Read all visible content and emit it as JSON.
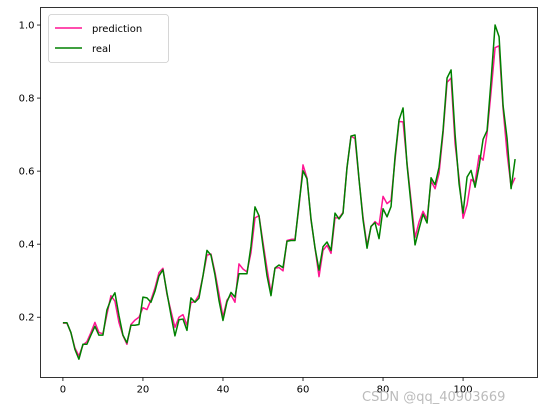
{
  "chart_data": {
    "type": "line",
    "title": "",
    "xlabel": "",
    "ylabel": "",
    "xlim": [
      -5.6,
      118.6
    ],
    "ylim": [
      0.035,
      1.048
    ],
    "xticks": [
      0,
      20,
      40,
      60,
      80,
      100
    ],
    "yticks": [
      0.2,
      0.4,
      0.6,
      0.8,
      1.0
    ],
    "xtick_labels": [
      "0",
      "20",
      "40",
      "60",
      "80",
      "100"
    ],
    "ytick_labels": [
      "0.2",
      "0.4",
      "0.6",
      "0.8",
      "1.0"
    ],
    "legend": {
      "position": "upper left"
    },
    "grid": false,
    "series": [
      {
        "name": "prediction",
        "color": "#ff1493",
        "values": [
          0.184,
          0.184,
          0.158,
          0.116,
          0.094,
          0.124,
          0.133,
          0.158,
          0.186,
          0.158,
          0.155,
          0.208,
          0.259,
          0.244,
          0.186,
          0.15,
          0.126,
          0.18,
          0.192,
          0.2,
          0.226,
          0.221,
          0.247,
          0.28,
          0.322,
          0.334,
          0.263,
          0.217,
          0.172,
          0.2,
          0.207,
          0.178,
          0.24,
          0.243,
          0.261,
          0.313,
          0.37,
          0.373,
          0.323,
          0.264,
          0.201,
          0.247,
          0.261,
          0.241,
          0.346,
          0.332,
          0.324,
          0.377,
          0.472,
          0.478,
          0.405,
          0.333,
          0.267,
          0.334,
          0.336,
          0.327,
          0.41,
          0.413,
          0.414,
          0.503,
          0.617,
          0.581,
          0.466,
          0.39,
          0.311,
          0.383,
          0.397,
          0.375,
          0.472,
          0.472,
          0.487,
          0.61,
          0.696,
          0.689,
          0.577,
          0.473,
          0.396,
          0.448,
          0.462,
          0.452,
          0.531,
          0.511,
          0.52,
          0.631,
          0.736,
          0.735,
          0.621,
          0.52,
          0.418,
          0.461,
          0.49,
          0.468,
          0.573,
          0.552,
          0.594,
          0.704,
          0.843,
          0.855,
          0.675,
          0.58,
          0.471,
          0.508,
          0.577,
          0.569,
          0.643,
          0.63,
          0.704,
          0.818,
          0.938,
          0.943,
          0.77,
          0.648,
          0.558,
          0.582
        ]
      },
      {
        "name": "real",
        "color": "#008000",
        "values": [
          0.185,
          0.185,
          0.158,
          0.112,
          0.085,
          0.126,
          0.126,
          0.151,
          0.175,
          0.151,
          0.151,
          0.22,
          0.249,
          0.267,
          0.205,
          0.151,
          0.13,
          0.178,
          0.178,
          0.18,
          0.255,
          0.253,
          0.241,
          0.271,
          0.313,
          0.33,
          0.267,
          0.206,
          0.149,
          0.193,
          0.195,
          0.164,
          0.253,
          0.241,
          0.252,
          0.313,
          0.383,
          0.37,
          0.316,
          0.246,
          0.191,
          0.242,
          0.268,
          0.255,
          0.319,
          0.319,
          0.319,
          0.394,
          0.502,
          0.478,
          0.394,
          0.314,
          0.259,
          0.335,
          0.343,
          0.336,
          0.408,
          0.41,
          0.41,
          0.51,
          0.601,
          0.579,
          0.469,
          0.39,
          0.329,
          0.393,
          0.406,
          0.383,
          0.485,
          0.469,
          0.485,
          0.61,
          0.696,
          0.699,
          0.578,
          0.467,
          0.389,
          0.449,
          0.459,
          0.415,
          0.497,
          0.475,
          0.503,
          0.639,
          0.74,
          0.773,
          0.617,
          0.508,
          0.398,
          0.442,
          0.482,
          0.458,
          0.582,
          0.563,
          0.611,
          0.712,
          0.855,
          0.877,
          0.701,
          0.565,
          0.485,
          0.584,
          0.602,
          0.556,
          0.613,
          0.687,
          0.711,
          0.849,
          1.0,
          0.968,
          0.779,
          0.689,
          0.552,
          0.633
        ]
      }
    ]
  },
  "watermark": "CSDN @qq_40903669"
}
